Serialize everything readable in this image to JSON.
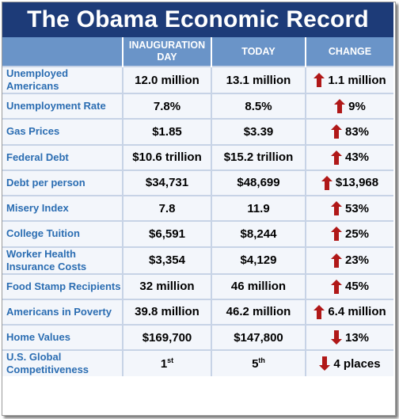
{
  "title": "The Obama Economic Record",
  "headers": {
    "label": "",
    "inauguration": "INAUGURATION DAY",
    "today": "TODAY",
    "change": "CHANGE"
  },
  "colors": {
    "title_bg": "#1d3b78",
    "header_bg": "#6a94c8",
    "label_text": "#2b6db2",
    "arrow": "#b01818"
  },
  "rows": [
    {
      "label": "Unemployed Americans",
      "inauguration": "12.0 million",
      "today": "13.1 million",
      "direction": "up",
      "change": "1.1 million"
    },
    {
      "label": "Unemployment Rate",
      "inauguration": "7.8%",
      "today": "8.5%",
      "direction": "up",
      "change": "9%"
    },
    {
      "label": "Gas Prices",
      "inauguration": "$1.85",
      "today": "$3.39",
      "direction": "up",
      "change": "83%"
    },
    {
      "label": "Federal Debt",
      "inauguration": "$10.6 trillion",
      "today": "$15.2 trillion",
      "direction": "up",
      "change": "43%"
    },
    {
      "label": "Debt per person",
      "inauguration": "$34,731",
      "today": "$48,699",
      "direction": "up",
      "change": "$13,968"
    },
    {
      "label": "Misery Index",
      "inauguration": "7.8",
      "today": "11.9",
      "direction": "up",
      "change": "53%"
    },
    {
      "label": "College Tuition",
      "inauguration": "$6,591",
      "today": "$8,244",
      "direction": "up",
      "change": "25%"
    },
    {
      "label": "Worker Health Insurance Costs",
      "inauguration": "$3,354",
      "today": "$4,129",
      "direction": "up",
      "change": "23%"
    },
    {
      "label": "Food Stamp Recipients",
      "inauguration": "32 million",
      "today": "46 million",
      "direction": "up",
      "change": "45%"
    },
    {
      "label": "Americans in Poverty",
      "inauguration": "39.8 million",
      "today": "46.2 million",
      "direction": "up",
      "change": "6.4 million"
    },
    {
      "label": "Home Values",
      "inauguration": "$169,700",
      "today": "$147,800",
      "direction": "down",
      "change": "13%"
    },
    {
      "label": "U.S. Global Competitiveness",
      "inauguration": "1",
      "inauguration_sup": "st",
      "today": "5",
      "today_sup": "th",
      "direction": "down",
      "change": "4 places"
    }
  ]
}
